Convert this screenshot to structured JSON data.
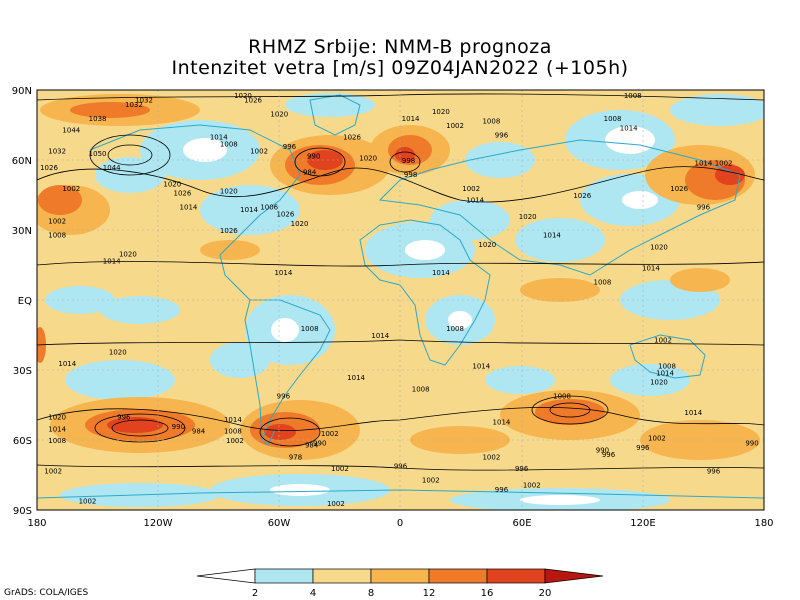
{
  "title": {
    "line1": "RHMZ Srbije: NMM-B prognoza",
    "line2": "Intenzitet vetra [m/s] 09Z04JAN2022 (+105h)"
  },
  "map": {
    "lat_labels": [
      "90N",
      "60N",
      "30N",
      "EQ",
      "30S",
      "60S",
      "90S"
    ],
    "lon_labels": [
      "180",
      "120W",
      "60W",
      "0",
      "60E",
      "120E",
      "180"
    ],
    "pressure_labels": [
      {
        "lon": -180,
        "lat": 57,
        "text": "1026"
      },
      {
        "lon": -150,
        "lat": 78,
        "text": "1038"
      },
      {
        "lon": -132,
        "lat": 84,
        "text": "1032"
      },
      {
        "lon": -163,
        "lat": 73,
        "text": "1044"
      },
      {
        "lon": -170,
        "lat": 64,
        "text": "1032"
      },
      {
        "lon": -150,
        "lat": 63,
        "text": "1050"
      },
      {
        "lon": -143,
        "lat": 57,
        "text": "1044"
      },
      {
        "lon": -163,
        "lat": 48,
        "text": "1002"
      },
      {
        "lon": -113,
        "lat": 50,
        "text": "1020"
      },
      {
        "lon": -108,
        "lat": 46,
        "text": "1026"
      },
      {
        "lon": -105,
        "lat": 40,
        "text": "1014"
      },
      {
        "lon": -85,
        "lat": 47,
        "text": "1020"
      },
      {
        "lon": -75,
        "lat": 39,
        "text": "1014"
      },
      {
        "lon": -65,
        "lat": 40,
        "text": "1006"
      },
      {
        "lon": -57,
        "lat": 37,
        "text": "1026"
      },
      {
        "lon": -50,
        "lat": 33,
        "text": "1020"
      },
      {
        "lon": -170,
        "lat": 34,
        "text": "1002"
      },
      {
        "lon": -170,
        "lat": 28,
        "text": "1008"
      },
      {
        "lon": -85,
        "lat": 30,
        "text": "1026"
      },
      {
        "lon": -135,
        "lat": 20,
        "text": "1020"
      },
      {
        "lon": -143,
        "lat": 17,
        "text": "1014"
      },
      {
        "lon": -58,
        "lat": 12,
        "text": "1014"
      },
      {
        "lon": -78,
        "lat": 88,
        "text": "1020"
      },
      {
        "lon": -73,
        "lat": 86,
        "text": "1026"
      },
      {
        "lon": -127,
        "lat": 86,
        "text": "1032"
      },
      {
        "lon": -60,
        "lat": 80,
        "text": "1020"
      },
      {
        "lon": -90,
        "lat": 70,
        "text": "1014"
      },
      {
        "lon": -85,
        "lat": 67,
        "text": "1008"
      },
      {
        "lon": -70,
        "lat": 64,
        "text": "1002"
      },
      {
        "lon": -55,
        "lat": 66,
        "text": "996"
      },
      {
        "lon": -43,
        "lat": 62,
        "text": "990"
      },
      {
        "lon": -45,
        "lat": 55,
        "text": "984"
      },
      {
        "lon": -24,
        "lat": 70,
        "text": "1026"
      },
      {
        "lon": -16,
        "lat": 61,
        "text": "1020"
      },
      {
        "lon": 5,
        "lat": 78,
        "text": "1014"
      },
      {
        "lon": 20,
        "lat": 81,
        "text": "1020"
      },
      {
        "lon": 27,
        "lat": 75,
        "text": "1002"
      },
      {
        "lon": 4,
        "lat": 60,
        "text": "998"
      },
      {
        "lon": 5,
        "lat": 54,
        "text": "998"
      },
      {
        "lon": 45,
        "lat": 77,
        "text": "1008"
      },
      {
        "lon": 50,
        "lat": 71,
        "text": "996"
      },
      {
        "lon": 35,
        "lat": 48,
        "text": "1002"
      },
      {
        "lon": 37,
        "lat": 43,
        "text": "1014"
      },
      {
        "lon": 90,
        "lat": 45,
        "text": "1026"
      },
      {
        "lon": 63,
        "lat": 36,
        "text": "1020"
      },
      {
        "lon": 75,
        "lat": 28,
        "text": "1014"
      },
      {
        "lon": 43,
        "lat": 24,
        "text": "1020"
      },
      {
        "lon": 20,
        "lat": 12,
        "text": "1014"
      },
      {
        "lon": 115,
        "lat": 88,
        "text": "1008"
      },
      {
        "lon": 105,
        "lat": 78,
        "text": "1008"
      },
      {
        "lon": 113,
        "lat": 74,
        "text": "1014"
      },
      {
        "lon": 150,
        "lat": 59,
        "text": "1014"
      },
      {
        "lon": 160,
        "lat": 59,
        "text": "1002"
      },
      {
        "lon": 138,
        "lat": 48,
        "text": "1026"
      },
      {
        "lon": 150,
        "lat": 40,
        "text": "996"
      },
      {
        "lon": 128,
        "lat": 23,
        "text": "1020"
      },
      {
        "lon": 124,
        "lat": 14,
        "text": "1014"
      },
      {
        "lon": 100,
        "lat": 8,
        "text": "1008"
      },
      {
        "lon": 130,
        "lat": -17,
        "text": "1002"
      },
      {
        "lon": 132,
        "lat": -28,
        "text": "1008"
      },
      {
        "lon": 131,
        "lat": -31,
        "text": "1014"
      },
      {
        "lon": 128,
        "lat": -35,
        "text": "1020"
      },
      {
        "lon": -45,
        "lat": -12,
        "text": "1008"
      },
      {
        "lon": -10,
        "lat": -15,
        "text": "1014"
      },
      {
        "lon": 27,
        "lat": -12,
        "text": "1008"
      },
      {
        "lon": 40,
        "lat": -28,
        "text": "1014"
      },
      {
        "lon": -140,
        "lat": -22,
        "text": "1020"
      },
      {
        "lon": -165,
        "lat": -27,
        "text": "1014"
      },
      {
        "lon": -22,
        "lat": -33,
        "text": "1014"
      },
      {
        "lon": 10,
        "lat": -38,
        "text": "1008"
      },
      {
        "lon": -170,
        "lat": -50,
        "text": "1020"
      },
      {
        "lon": -170,
        "lat": -55,
        "text": "1014"
      },
      {
        "lon": -170,
        "lat": -60,
        "text": "1008"
      },
      {
        "lon": -137,
        "lat": -50,
        "text": "996"
      },
      {
        "lon": -110,
        "lat": -54,
        "text": "990"
      },
      {
        "lon": -100,
        "lat": -56,
        "text": "984"
      },
      {
        "lon": -83,
        "lat": -51,
        "text": "1014"
      },
      {
        "lon": -83,
        "lat": -56,
        "text": "1008"
      },
      {
        "lon": -82,
        "lat": -60,
        "text": "1002"
      },
      {
        "lon": -58,
        "lat": -41,
        "text": "996"
      },
      {
        "lon": -35,
        "lat": -57,
        "text": "1002"
      },
      {
        "lon": -40,
        "lat": -61,
        "text": "990"
      },
      {
        "lon": -44,
        "lat": -62,
        "text": "984"
      },
      {
        "lon": -52,
        "lat": -67,
        "text": "978"
      },
      {
        "lon": 80,
        "lat": -41,
        "text": "1008"
      },
      {
        "lon": 50,
        "lat": -52,
        "text": "1014"
      },
      {
        "lon": 100,
        "lat": -64,
        "text": "990"
      },
      {
        "lon": 103,
        "lat": -66,
        "text": "996"
      },
      {
        "lon": 120,
        "lat": -63,
        "text": "996"
      },
      {
        "lon": 127,
        "lat": -59,
        "text": "1002"
      },
      {
        "lon": 145,
        "lat": -48,
        "text": "1014"
      },
      {
        "lon": 175,
        "lat": -61,
        "text": "990"
      },
      {
        "lon": 155,
        "lat": -73,
        "text": "996"
      },
      {
        "lon": 45,
        "lat": -67,
        "text": "1002"
      },
      {
        "lon": 60,
        "lat": -72,
        "text": "996"
      },
      {
        "lon": 0,
        "lat": -71,
        "text": "996"
      },
      {
        "lon": -30,
        "lat": -72,
        "text": "1002"
      },
      {
        "lon": 15,
        "lat": -77,
        "text": "1002"
      },
      {
        "lon": 65,
        "lat": -79,
        "text": "1002"
      },
      {
        "lon": 50,
        "lat": -81,
        "text": "996"
      },
      {
        "lon": -172,
        "lat": -73,
        "text": "1002"
      },
      {
        "lon": -155,
        "lat": -86,
        "text": "1002"
      },
      {
        "lon": -32,
        "lat": -87,
        "text": "1002"
      }
    ]
  },
  "legend": {
    "tick_labels": [
      "2",
      "4",
      "8",
      "12",
      "16",
      "20"
    ],
    "colors": {
      "below": "#ffffff",
      "c2_4": "#aee7f2",
      "c4_8": "#f7d98c",
      "c8_12": "#f6b54e",
      "c12_16": "#ef7a2a",
      "c16_20": "#e0431e",
      "above": "#b8160f"
    }
  },
  "credit": "GrADS: COLA/IGES"
}
